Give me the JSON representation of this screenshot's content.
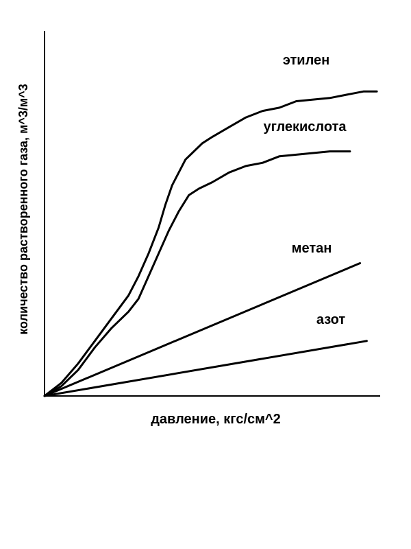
{
  "chart_data": {
    "type": "line",
    "title": "",
    "xlabel": "давление, кгс/см^2",
    "ylabel": "количество растворенного газа, м^3/м^3",
    "xlim": [
      0,
      100
    ],
    "ylim": [
      0,
      100
    ],
    "grid": false,
    "series": [
      {
        "name": "этилен",
        "x": [
          0,
          5,
          10,
          15,
          20,
          25,
          28,
          31,
          34,
          36,
          38,
          40,
          42,
          44,
          47,
          50,
          55,
          60,
          65,
          70,
          75,
          80,
          85,
          90,
          95,
          99
        ],
        "y": [
          0,
          4,
          10,
          17,
          24,
          31,
          37,
          44,
          52,
          59,
          65,
          69,
          73,
          75,
          78,
          80,
          83,
          86,
          88,
          89,
          91,
          91.5,
          92,
          93,
          94,
          94
        ]
      },
      {
        "name": "углекислота",
        "x": [
          0,
          5,
          10,
          15,
          20,
          25,
          28,
          31,
          34,
          37,
          40,
          43,
          46,
          50,
          55,
          60,
          65,
          70,
          75,
          80,
          85,
          91
        ],
        "y": [
          0,
          3,
          8,
          15,
          21,
          26,
          30,
          37,
          44,
          51,
          57,
          62,
          64,
          66,
          69,
          71,
          72,
          74,
          74.5,
          75,
          75.5,
          75.5
        ]
      },
      {
        "name": "метан",
        "x": [
          0,
          94
        ],
        "y": [
          0,
          41
        ]
      },
      {
        "name": "азот",
        "x": [
          0,
          96
        ],
        "y": [
          0,
          17
        ]
      }
    ]
  }
}
